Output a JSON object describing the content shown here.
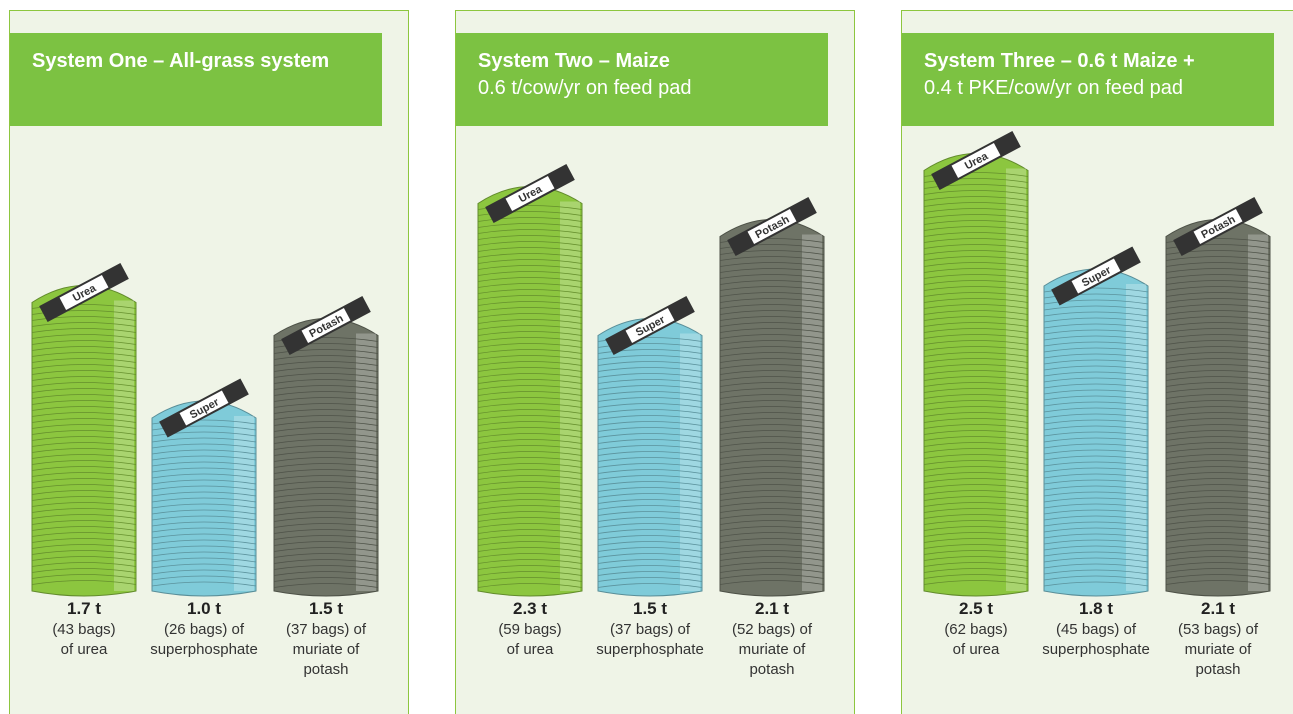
{
  "chart_data": [
    {
      "type": "bar",
      "title": "System One – All-grass system",
      "categories": [
        "Urea",
        "Super",
        "Potash"
      ],
      "values": [
        1.7,
        1.0,
        1.5
      ],
      "value_labels": [
        "1.7 t",
        "1.0 t",
        "1.5 t"
      ],
      "notes": [
        [
          "(43 bags)",
          "of urea"
        ],
        [
          "(26 bags) of",
          "superphosphate"
        ],
        [
          "(37 bags) of",
          "muriate of",
          "potash"
        ]
      ],
      "colors": [
        "#8cc63f",
        "#7fcbd9",
        "#6e7366"
      ]
    },
    {
      "type": "bar",
      "title": "System Two – Maize",
      "subtitle": "0.6 t/cow/yr on feed pad",
      "categories": [
        "Urea",
        "Super",
        "Potash"
      ],
      "values": [
        2.3,
        1.5,
        2.1
      ],
      "value_labels": [
        "2.3 t",
        "1.5 t",
        "2.1 t"
      ],
      "notes": [
        [
          "(59 bags)",
          "of urea"
        ],
        [
          "(37 bags) of",
          "superphosphate"
        ],
        [
          "(52 bags) of",
          "muriate of",
          "potash"
        ]
      ],
      "colors": [
        "#8cc63f",
        "#7fcbd9",
        "#6e7366"
      ]
    },
    {
      "type": "bar",
      "title": "System Three – 0.6 t Maize +",
      "subtitle": "0.4 t PKE/cow/yr on feed pad",
      "categories": [
        "Urea",
        "Super",
        "Potash"
      ],
      "values": [
        2.5,
        1.8,
        2.1
      ],
      "value_labels": [
        "2.5 t",
        "1.8 t",
        "2.1 t"
      ],
      "notes": [
        [
          "(62 bags)",
          "of urea"
        ],
        [
          "(45 bags) of",
          "superphosphate"
        ],
        [
          "(53 bags) of",
          "muriate of",
          "potash"
        ]
      ],
      "colors": [
        "#8cc63f",
        "#7fcbd9",
        "#6e7366"
      ]
    }
  ]
}
